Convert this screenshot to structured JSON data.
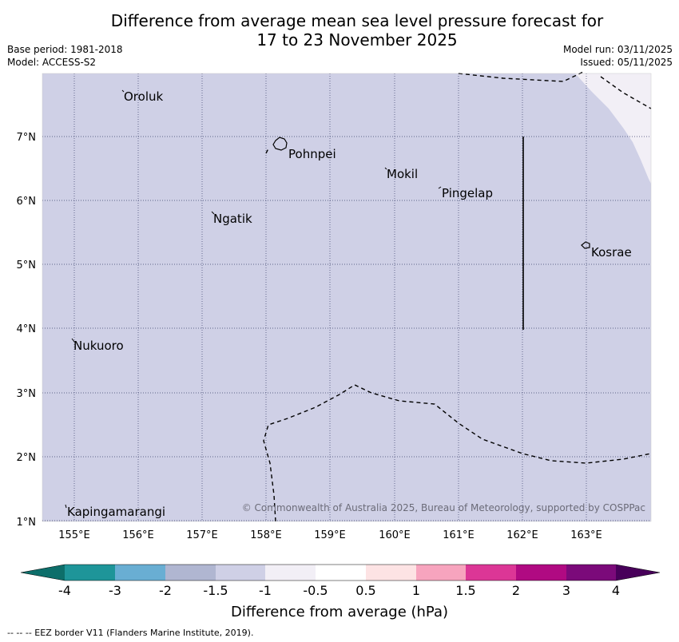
{
  "title_line1": "Difference from average mean sea level pressure forecast for",
  "title_line2": "17 to 23 November 2025",
  "meta": {
    "base_period": "Base period: 1981-2018",
    "model": "Model: ACCESS-S2",
    "model_run": "Model run: 03/11/2025",
    "issued": "Issued: 05/11/2025"
  },
  "axes": {
    "lon_labels": [
      "155°E",
      "156°E",
      "157°E",
      "158°E",
      "159°E",
      "160°E",
      "161°E",
      "162°E",
      "163°E"
    ],
    "lat_labels": [
      "7°N",
      "6°N",
      "5°N",
      "4°N",
      "3°N",
      "2°N",
      "1°N"
    ]
  },
  "places": [
    "Oroluk",
    "Pohnpei",
    "Mokil",
    "Pingelap",
    "Ngatik",
    "Kosrae",
    "Nukuoro",
    "Kapingamarangi"
  ],
  "copyright": "© Commonwealth of Australia 2025, Bureau of Meteorology, supported by COSPPac",
  "colorbar": {
    "labels": [
      "-4",
      "-3",
      "-2",
      "-1.5",
      "-1",
      "-0.5",
      "0.5",
      "1",
      "1.5",
      "2",
      "3",
      "4"
    ],
    "colors": [
      "#0d6e6a",
      "#1e9599",
      "#69aed3",
      "#b0b6d1",
      "#cfd0e6",
      "#f2eff6",
      "#ffffff",
      "#fde3e4",
      "#f7a4be",
      "#dc3696",
      "#b00a82",
      "#7b0a7a",
      "#48005a"
    ],
    "title": "Difference from average (hPa)"
  },
  "map_fill": {
    "main": "#cfd0e6",
    "light": "#f2eff6"
  },
  "footer": "--  --  -- EEZ border V11 (Flanders Marine Institute, 2019)."
}
